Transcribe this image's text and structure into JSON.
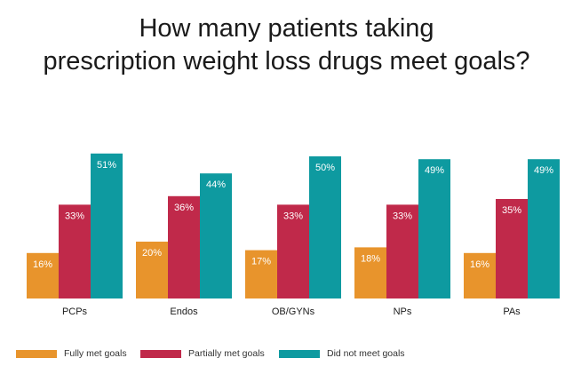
{
  "chart_data": {
    "type": "bar",
    "title": "How many patients taking prescription weight loss drugs meet goals?",
    "title_lines": [
      "How many patients taking",
      "prescription weight loss drugs meet goals?"
    ],
    "categories": [
      "PCPs",
      "Endos",
      "OB/GYNs",
      "NPs",
      "PAs"
    ],
    "series": [
      {
        "name": "Fully met goals",
        "color": "#E8942C",
        "values": [
          16,
          20,
          17,
          18,
          16
        ]
      },
      {
        "name": "Partially met goals",
        "color": "#C0294A",
        "values": [
          33,
          36,
          33,
          33,
          35
        ]
      },
      {
        "name": "Did not meet goals",
        "color": "#0E9AA0",
        "values": [
          51,
          44,
          50,
          49,
          49
        ]
      }
    ],
    "value_suffix": "%",
    "xlabel": "",
    "ylabel": "",
    "ylim": [
      0,
      55
    ],
    "grid": false,
    "legend_position": "bottom"
  }
}
